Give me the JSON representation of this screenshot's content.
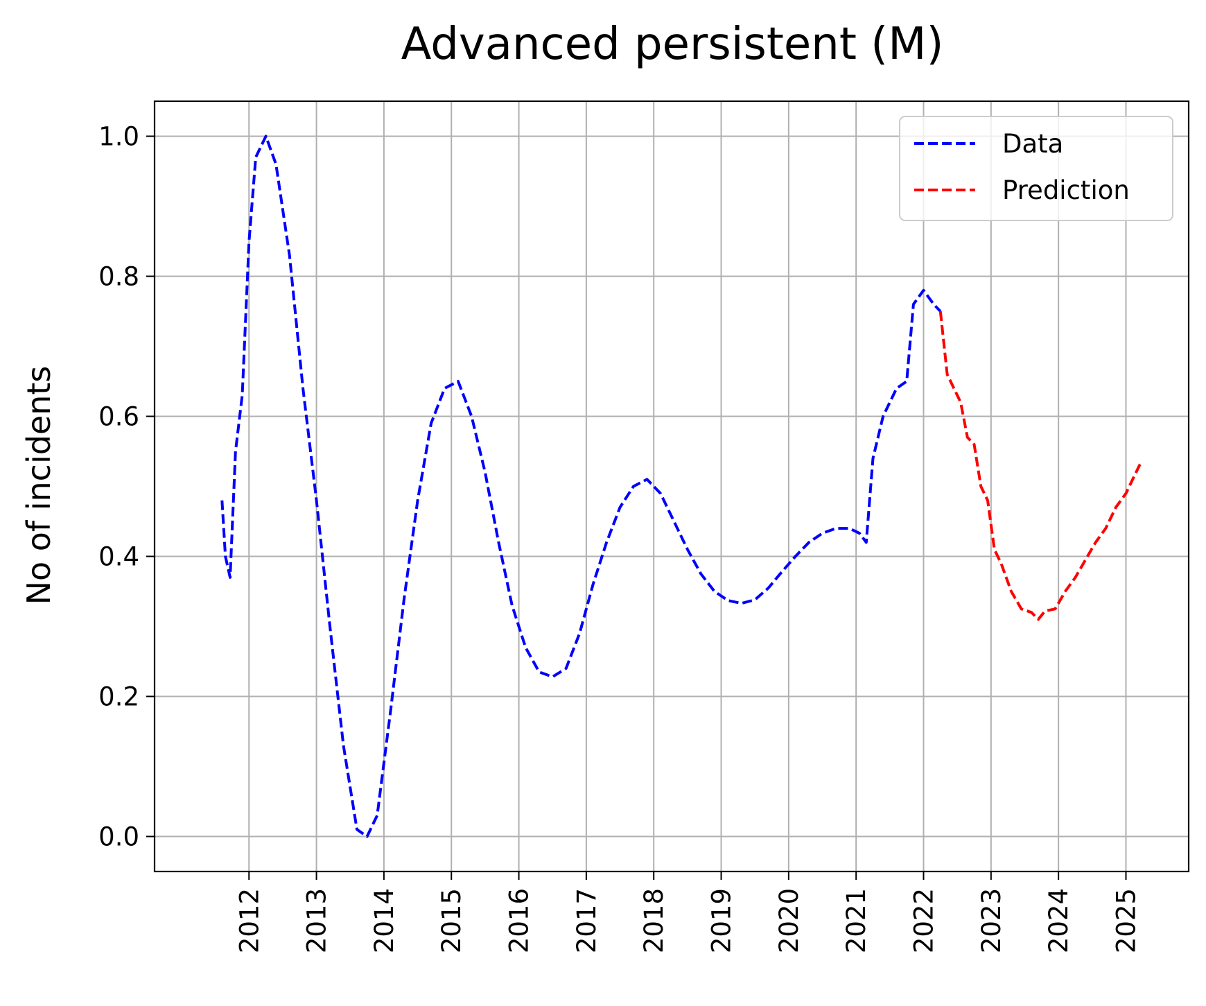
{
  "chart_data": {
    "type": "line",
    "title": "Advanced persistent (M)",
    "xlabel": "",
    "ylabel": "No of incidents",
    "x_ticks": [
      "2012",
      "2013",
      "2014",
      "2015",
      "2016",
      "2017",
      "2018",
      "2019",
      "2020",
      "2021",
      "2022",
      "2023",
      "2024",
      "2025"
    ],
    "y_ticks": [
      "0.0",
      "0.2",
      "0.4",
      "0.6",
      "0.8",
      "1.0"
    ],
    "xlim": [
      2010.6,
      2025.93
    ],
    "ylim": [
      -0.05,
      1.05
    ],
    "grid": true,
    "legend_position": "top-right",
    "series": [
      {
        "name": "Data",
        "color": "#0000ff",
        "style": "dashed",
        "points": [
          [
            2011.6,
            0.48
          ],
          [
            2011.65,
            0.4
          ],
          [
            2011.72,
            0.37
          ],
          [
            2011.8,
            0.55
          ],
          [
            2011.9,
            0.63
          ],
          [
            2012.0,
            0.85
          ],
          [
            2012.1,
            0.97
          ],
          [
            2012.25,
            1.0
          ],
          [
            2012.4,
            0.96
          ],
          [
            2012.6,
            0.83
          ],
          [
            2012.8,
            0.64
          ],
          [
            2013.0,
            0.48
          ],
          [
            2013.2,
            0.3
          ],
          [
            2013.4,
            0.13
          ],
          [
            2013.6,
            0.01
          ],
          [
            2013.75,
            0.0
          ],
          [
            2013.9,
            0.03
          ],
          [
            2014.1,
            0.18
          ],
          [
            2014.3,
            0.34
          ],
          [
            2014.5,
            0.48
          ],
          [
            2014.7,
            0.59
          ],
          [
            2014.9,
            0.64
          ],
          [
            2015.1,
            0.65
          ],
          [
            2015.3,
            0.6
          ],
          [
            2015.5,
            0.52
          ],
          [
            2015.7,
            0.42
          ],
          [
            2015.9,
            0.33
          ],
          [
            2016.1,
            0.27
          ],
          [
            2016.3,
            0.235
          ],
          [
            2016.5,
            0.228
          ],
          [
            2016.7,
            0.24
          ],
          [
            2016.9,
            0.29
          ],
          [
            2017.1,
            0.36
          ],
          [
            2017.3,
            0.42
          ],
          [
            2017.5,
            0.47
          ],
          [
            2017.7,
            0.5
          ],
          [
            2017.9,
            0.51
          ],
          [
            2018.1,
            0.49
          ],
          [
            2018.3,
            0.45
          ],
          [
            2018.5,
            0.41
          ],
          [
            2018.7,
            0.375
          ],
          [
            2018.9,
            0.35
          ],
          [
            2019.1,
            0.337
          ],
          [
            2019.3,
            0.333
          ],
          [
            2019.5,
            0.338
          ],
          [
            2019.7,
            0.355
          ],
          [
            2019.9,
            0.378
          ],
          [
            2020.1,
            0.4
          ],
          [
            2020.3,
            0.42
          ],
          [
            2020.5,
            0.433
          ],
          [
            2020.7,
            0.44
          ],
          [
            2020.9,
            0.44
          ],
          [
            2021.05,
            0.433
          ],
          [
            2021.15,
            0.42
          ],
          [
            2021.25,
            0.54
          ],
          [
            2021.4,
            0.6
          ],
          [
            2021.6,
            0.64
          ],
          [
            2021.75,
            0.65
          ],
          [
            2021.85,
            0.76
          ],
          [
            2022.0,
            0.78
          ],
          [
            2022.15,
            0.76
          ],
          [
            2022.25,
            0.75
          ]
        ]
      },
      {
        "name": "Prediction",
        "color": "#ff0000",
        "style": "dashed",
        "points": [
          [
            2022.25,
            0.75
          ],
          [
            2022.35,
            0.66
          ],
          [
            2022.45,
            0.64
          ],
          [
            2022.55,
            0.62
          ],
          [
            2022.65,
            0.57
          ],
          [
            2022.75,
            0.56
          ],
          [
            2022.85,
            0.5
          ],
          [
            2022.95,
            0.48
          ],
          [
            2023.05,
            0.41
          ],
          [
            2023.15,
            0.39
          ],
          [
            2023.3,
            0.35
          ],
          [
            2023.45,
            0.325
          ],
          [
            2023.6,
            0.32
          ],
          [
            2023.7,
            0.31
          ],
          [
            2023.8,
            0.322
          ],
          [
            2023.95,
            0.325
          ],
          [
            2024.1,
            0.35
          ],
          [
            2024.25,
            0.37
          ],
          [
            2024.4,
            0.395
          ],
          [
            2024.55,
            0.42
          ],
          [
            2024.7,
            0.44
          ],
          [
            2024.85,
            0.47
          ],
          [
            2025.0,
            0.49
          ],
          [
            2025.1,
            0.51
          ],
          [
            2025.2,
            0.53
          ],
          [
            2025.25,
            0.535
          ]
        ]
      }
    ]
  }
}
